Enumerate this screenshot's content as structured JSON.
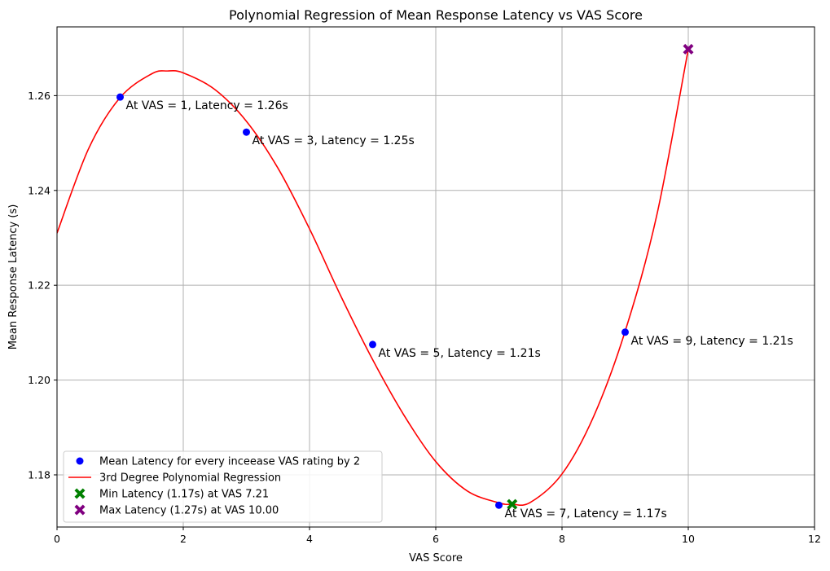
{
  "chart_data": {
    "type": "scatter",
    "title": "Polynomial Regression of Mean Response Latency vs VAS Score",
    "xlabel": "VAS Score",
    "ylabel": "Mean Response Latency (s)",
    "xlim": [
      0,
      12
    ],
    "ylim": [
      1.169,
      1.2745
    ],
    "xticks": [
      0,
      2,
      4,
      6,
      8,
      10,
      12
    ],
    "yticks": [
      1.18,
      1.2,
      1.22,
      1.24,
      1.26
    ],
    "xtick_labels": [
      "0",
      "2",
      "4",
      "6",
      "8",
      "10",
      "12"
    ],
    "ytick_labels": [
      "1.18",
      "1.20",
      "1.22",
      "1.24",
      "1.26"
    ],
    "grid": true,
    "legend_position": "lower-left",
    "series": [
      {
        "name": "Mean Latency for every inceease VAS rating by 2",
        "kind": "scatter",
        "color": "#0000ff",
        "x": [
          1,
          3,
          5,
          7,
          9
        ],
        "y": [
          1.2597,
          1.2523,
          1.2075,
          1.1736,
          1.2101
        ]
      },
      {
        "name": "3rd Degree Polynomial Regression",
        "kind": "line",
        "color": "#ff0000",
        "x": [
          0,
          0.5,
          1,
          1.5,
          1.75,
          2,
          2.5,
          3,
          3.5,
          4,
          4.5,
          5,
          5.5,
          6,
          6.5,
          7,
          7.21,
          7.5,
          8,
          8.5,
          9,
          9.5,
          10
        ],
        "y": [
          1.231,
          1.2488,
          1.2596,
          1.2646,
          1.2652,
          1.2648,
          1.2613,
          1.2546,
          1.2447,
          1.2319,
          1.2176,
          1.2043,
          1.1925,
          1.1828,
          1.1766,
          1.1741,
          1.1738,
          1.1742,
          1.1802,
          1.1923,
          1.2103,
          1.2347,
          1.2698
        ]
      },
      {
        "name": "Min Latency (1.17s) at VAS 7.21",
        "kind": "marker-x",
        "color": "#008000",
        "x": [
          7.21
        ],
        "y": [
          1.1738
        ]
      },
      {
        "name": "Max Latency (1.27s) at VAS 10.00",
        "kind": "marker-x",
        "color": "#800080",
        "x": [
          10.0
        ],
        "y": [
          1.2698
        ]
      }
    ],
    "annotations": [
      {
        "text": "At VAS = 1, Latency = 1.26s",
        "x": 1,
        "y": 1.2597
      },
      {
        "text": "At VAS = 3, Latency = 1.25s",
        "x": 3,
        "y": 1.2523
      },
      {
        "text": "At VAS = 5, Latency = 1.21s",
        "x": 5,
        "y": 1.2075
      },
      {
        "text": "At VAS = 7, Latency = 1.17s",
        "x": 7,
        "y": 1.1736
      },
      {
        "text": "At VAS = 9, Latency = 1.21s",
        "x": 9,
        "y": 1.2101
      }
    ]
  }
}
